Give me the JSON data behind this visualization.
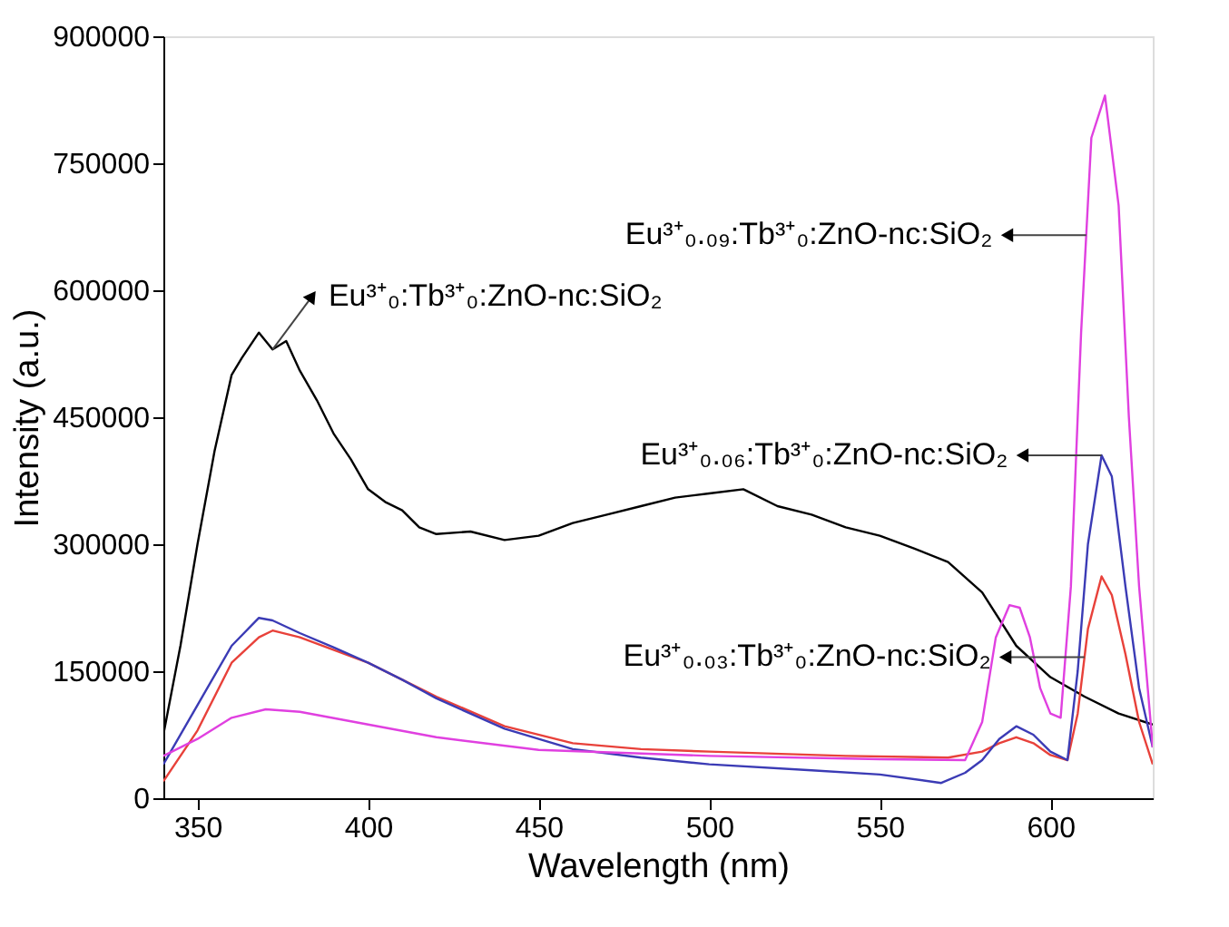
{
  "chart_data": {
    "type": "line",
    "xlabel": "Wavelength (nm)",
    "ylabel": "Intensity (a.u.)",
    "xlim": [
      340,
      630
    ],
    "xticks": [
      350,
      400,
      450,
      500,
      550,
      600
    ],
    "ylim": [
      0,
      900000
    ],
    "yticks": [
      0,
      150000,
      300000,
      450000,
      600000,
      750000,
      900000
    ],
    "grid": false,
    "line_style": "solid",
    "marker": "none",
    "series": [
      {
        "color": "#000000",
        "x": [
          340,
          345,
          350,
          355,
          360,
          363,
          368,
          372,
          376,
          380,
          385,
          390,
          395,
          400,
          405,
          410,
          415,
          420,
          430,
          440,
          450,
          460,
          470,
          480,
          490,
          500,
          510,
          520,
          530,
          540,
          550,
          560,
          570,
          580,
          590,
          600,
          610,
          620,
          630
        ],
        "values": [
          75000,
          180000,
          300000,
          410000,
          500000,
          520000,
          550000,
          530000,
          540000,
          505000,
          470000,
          430000,
          400000,
          365000,
          350000,
          340000,
          320000,
          312000,
          315000,
          305000,
          310000,
          325000,
          335000,
          345000,
          355000,
          360000,
          365000,
          345000,
          335000,
          320000,
          310000,
          295000,
          279000,
          243000,
          180000,
          143000,
          120000,
          100000,
          87000
        ]
      },
      {
        "color": "#e8413a",
        "x": [
          340,
          350,
          360,
          368,
          372,
          380,
          390,
          400,
          410,
          420,
          440,
          460,
          480,
          500,
          540,
          570,
          580,
          585,
          590,
          595,
          600,
          605,
          608,
          611,
          615,
          618,
          622,
          626,
          630
        ],
        "values": [
          20000,
          80000,
          160000,
          190000,
          198000,
          190000,
          175000,
          160000,
          140000,
          120000,
          85000,
          65000,
          58000,
          55000,
          50000,
          48000,
          55000,
          65000,
          72000,
          65000,
          51000,
          45000,
          100000,
          200000,
          262000,
          240000,
          170000,
          90000,
          40000
        ]
      },
      {
        "color": "#3b3bb5",
        "x": [
          340,
          350,
          360,
          368,
          372,
          380,
          390,
          400,
          410,
          420,
          440,
          460,
          480,
          500,
          530,
          550,
          568,
          575,
          580,
          585,
          590,
          595,
          600,
          605,
          608,
          611,
          615,
          618,
          622,
          626,
          630
        ],
        "values": [
          40000,
          110000,
          180000,
          213000,
          210000,
          195000,
          178000,
          160000,
          140000,
          118000,
          82000,
          58000,
          48000,
          40000,
          33000,
          28000,
          18000,
          30000,
          45000,
          70000,
          85000,
          75000,
          55000,
          45000,
          150000,
          300000,
          405000,
          380000,
          250000,
          130000,
          60000
        ]
      },
      {
        "color": "#e040e0",
        "x": [
          340,
          350,
          360,
          370,
          380,
          400,
          420,
          450,
          500,
          550,
          575,
          580,
          584,
          588,
          591,
          594,
          597,
          600,
          603,
          606,
          609,
          612,
          616,
          620,
          623,
          626,
          630
        ],
        "values": [
          50000,
          70000,
          95000,
          105000,
          102000,
          87000,
          72000,
          57000,
          50000,
          46000,
          45000,
          90000,
          190000,
          228000,
          225000,
          190000,
          130000,
          100000,
          95000,
          250000,
          550000,
          780000,
          830000,
          700000,
          450000,
          250000,
          60000
        ]
      }
    ],
    "annotations": [
      {
        "text": "Eu³⁺₀:Tb³⁺₀:ZnO-nc:SiO₂",
        "x": 372,
        "y": 530000
      },
      {
        "text": "Eu³⁺₀.₀₉:Tb³⁺₀:ZnO-nc:SiO₂",
        "x": 610.5,
        "y": 665000
      },
      {
        "text": "Eu³⁺₀.₀₆:Tb³⁺₀:ZnO-nc:SiO₂",
        "x": 615,
        "y": 405000
      },
      {
        "text": "Eu³⁺₀.₀₃:Tb³⁺₀:ZnO-nc:SiO₂",
        "x": 610,
        "y": 166667
      }
    ]
  }
}
